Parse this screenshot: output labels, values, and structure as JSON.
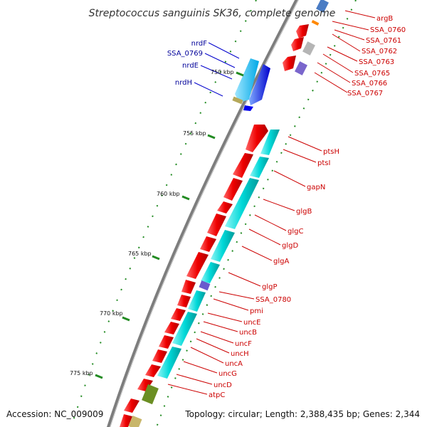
{
  "title": "Streptococcus sanguinis SK36, complete genome",
  "footer": {
    "accession": "Accession: NC_009009",
    "topology": "Topology: circular; Length: 2,388,435 bp; Genes: 2,344"
  },
  "ticks": [
    "750 kbp",
    "755 kbp",
    "760 kbp",
    "765 kbp",
    "770 kbp",
    "775 kbp"
  ],
  "genes_reverse": [
    "nrdF",
    "SSA_0769",
    "nrdE",
    "nrdH"
  ],
  "genes_forward": [
    "argB",
    "SSA_0760",
    "SSA_0761",
    "SSA_0762",
    "SSA_0763",
    "SSA_0765",
    "SSA_0766",
    "SSA_0767",
    "ptsH",
    "ptsI",
    "gapN",
    "glgB",
    "glgC",
    "glgD",
    "glgA",
    "glgP",
    "SSA_0780",
    "pmi",
    "uncE",
    "uncB",
    "uncF",
    "uncH",
    "uncA",
    "uncG",
    "uncD",
    "atpC"
  ],
  "colors": {
    "forward_label": "#cc0000",
    "reverse_label": "#000099",
    "tick": "#228B22",
    "backbone": "#808080",
    "cds_forward": "#e00000",
    "cds_reverse": "#0000e0"
  }
}
